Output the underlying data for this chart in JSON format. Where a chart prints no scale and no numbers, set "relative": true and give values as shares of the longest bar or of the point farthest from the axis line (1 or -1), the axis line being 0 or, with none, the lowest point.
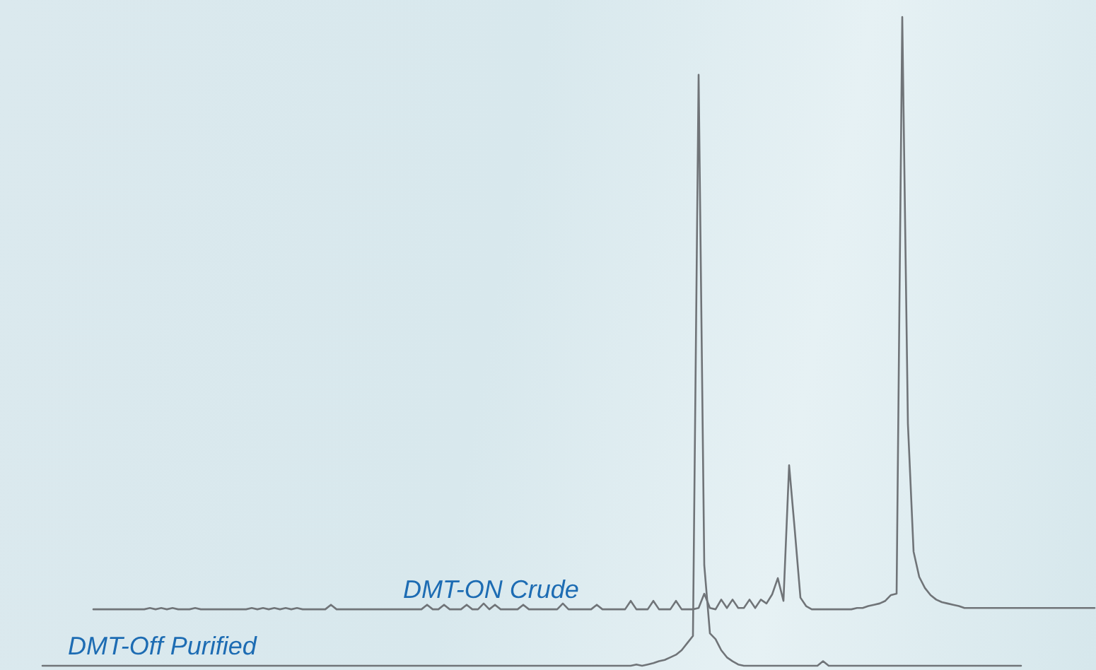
{
  "chart_data": {
    "type": "line",
    "relative": true,
    "marker": "none",
    "categories": [
      null,
      null,
      null,
      null,
      null,
      null,
      null,
      null,
      null,
      null,
      null,
      null,
      null,
      null,
      null,
      null,
      null,
      null,
      null,
      null,
      null,
      null,
      null,
      null,
      null,
      null,
      null,
      null,
      null,
      null,
      null,
      null,
      null,
      null,
      null,
      null,
      null,
      null,
      null,
      null,
      null,
      null,
      null,
      null,
      null,
      null,
      null,
      null,
      null,
      null,
      null,
      null,
      null,
      null,
      null,
      null,
      null,
      null,
      null,
      null,
      null,
      null,
      null,
      null,
      null,
      null,
      null,
      null,
      null,
      null,
      null,
      null,
      null,
      null,
      null,
      null,
      null,
      null,
      null,
      null,
      null,
      null,
      null,
      null,
      null,
      null,
      null,
      null,
      null,
      null,
      null,
      null,
      null,
      null,
      null,
      null,
      null,
      null,
      null,
      null,
      null,
      null,
      null,
      null,
      null,
      null,
      null,
      null,
      null,
      null,
      null,
      null,
      null,
      null,
      null,
      null,
      null,
      null,
      null,
      null,
      null,
      null,
      null,
      null,
      null,
      null,
      null,
      null,
      null,
      null,
      null,
      null,
      null,
      null,
      null,
      null,
      null,
      null,
      null,
      null,
      null,
      null,
      null,
      null,
      null,
      null,
      null,
      null,
      null,
      null,
      null,
      null,
      null,
      null,
      null,
      null,
      null,
      null,
      null,
      null,
      null,
      null,
      null,
      null,
      null,
      null,
      null,
      null,
      null,
      null,
      null,
      null,
      null,
      null,
      null,
      null,
      null,
      null,
      null,
      null,
      null,
      null,
      null,
      null,
      null,
      null,
      null
    ],
    "series": [
      {
        "name": "DMT-ON Crude",
        "color": "#707478",
        "values": [
          null,
          null,
          null,
          null,
          null,
          null,
          null,
          null,
          null,
          0.087,
          0.087,
          0.087,
          0.087,
          0.087,
          0.087,
          0.087,
          0.087,
          0.087,
          0.087,
          0.089,
          0.087,
          0.089,
          0.087,
          0.089,
          0.087,
          0.087,
          0.087,
          0.089,
          0.087,
          0.087,
          0.087,
          0.087,
          0.087,
          0.087,
          0.087,
          0.087,
          0.087,
          0.089,
          0.087,
          0.089,
          0.087,
          0.089,
          0.087,
          0.089,
          0.087,
          0.089,
          0.087,
          0.087,
          0.087,
          0.087,
          0.087,
          0.094,
          0.087,
          0.087,
          0.087,
          0.087,
          0.087,
          0.087,
          0.087,
          0.087,
          0.087,
          0.087,
          0.087,
          0.087,
          0.087,
          0.087,
          0.087,
          0.087,
          0.094,
          0.087,
          0.087,
          0.094,
          0.087,
          0.087,
          0.087,
          0.094,
          0.087,
          0.087,
          0.096,
          0.087,
          0.094,
          0.087,
          0.087,
          0.087,
          0.087,
          0.094,
          0.087,
          0.087,
          0.087,
          0.087,
          0.087,
          0.087,
          0.096,
          0.087,
          0.087,
          0.087,
          0.087,
          0.087,
          0.094,
          0.087,
          0.087,
          0.087,
          0.087,
          0.087,
          0.1,
          0.087,
          0.087,
          0.087,
          0.1,
          0.087,
          0.087,
          0.087,
          0.1,
          0.087,
          0.087,
          0.087,
          0.089,
          0.111,
          0.089,
          0.087,
          0.102,
          0.089,
          0.102,
          0.089,
          0.089,
          0.102,
          0.089,
          0.102,
          0.096,
          0.11,
          0.135,
          0.1,
          0.309,
          0.209,
          0.105,
          0.092,
          0.087,
          0.087,
          0.087,
          0.087,
          0.087,
          0.087,
          0.087,
          0.087,
          0.089,
          0.089,
          0.092,
          0.094,
          0.096,
          0.1,
          0.109,
          0.111,
          1,
          0.373,
          0.176,
          0.137,
          0.12,
          0.109,
          0.102,
          0.098,
          0.096,
          0.094,
          0.092,
          0.089,
          0.089,
          0.089,
          0.089,
          0.089,
          0.089,
          0.089,
          0.089,
          0.089,
          0.089,
          0.089,
          0.089,
          0.089,
          0.089,
          0.089,
          0.089,
          0.089,
          0.089,
          0.089,
          0.089,
          0.089,
          0.089,
          0.089,
          0.089
        ]
      },
      {
        "name": "DMT-Off Purified",
        "color": "#707478",
        "values": [
          0,
          0,
          0,
          0,
          0,
          0,
          0,
          0,
          0,
          0,
          0,
          0,
          0,
          0,
          0,
          0,
          0,
          0,
          0,
          0,
          0,
          0,
          0,
          0,
          0,
          0,
          0,
          0,
          0,
          0,
          0,
          0,
          0,
          0,
          0,
          0,
          0,
          0,
          0,
          0,
          0,
          0,
          0,
          0,
          0,
          0,
          0,
          0,
          0,
          0,
          0,
          0,
          0,
          0,
          0,
          0,
          0,
          0,
          0,
          0,
          0,
          0,
          0,
          0,
          0,
          0,
          0,
          0,
          0,
          0,
          0,
          0,
          0,
          0,
          0,
          0,
          0,
          0,
          0,
          0,
          0,
          0,
          0,
          0,
          0,
          0,
          0,
          0,
          0,
          0,
          0,
          0,
          0,
          0,
          0,
          0,
          0,
          0,
          0,
          0,
          0,
          0,
          0,
          0,
          0,
          0.002,
          0,
          0.002,
          0.004,
          0.007,
          0.009,
          0.013,
          0.017,
          0.024,
          0.035,
          0.046,
          0.911,
          0.155,
          0.05,
          0.041,
          0.024,
          0.013,
          0.007,
          0.002,
          0,
          0,
          0,
          0,
          0,
          0,
          0,
          0,
          0,
          0,
          0,
          0,
          0,
          0,
          0.007,
          0,
          0,
          0,
          0,
          0,
          0,
          0,
          0,
          0,
          0,
          0,
          0,
          0,
          0,
          0,
          0,
          0,
          0,
          0,
          0,
          0,
          0,
          0,
          0,
          0,
          0,
          0,
          0,
          0,
          0,
          0,
          0,
          0,
          0,
          0,
          null,
          null,
          null,
          null,
          null,
          null,
          null,
          null,
          null,
          null,
          null,
          null,
          null
        ]
      }
    ]
  }
}
